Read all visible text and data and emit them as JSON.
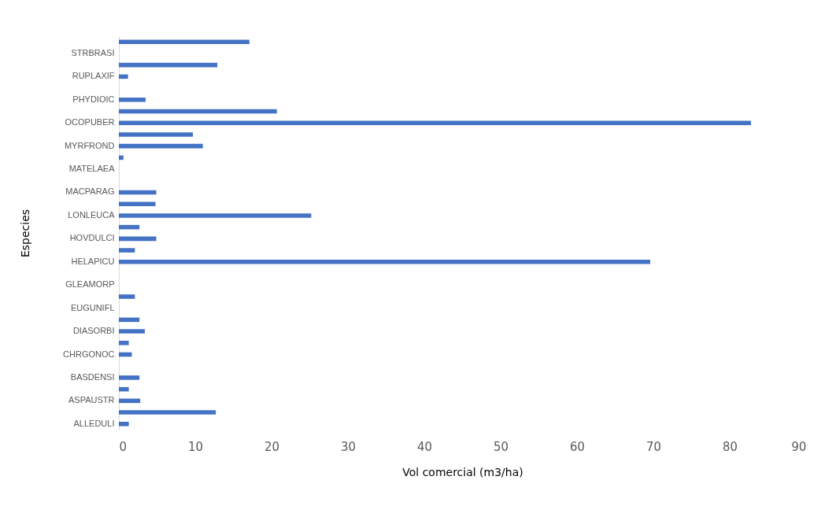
{
  "chart_data": {
    "type": "bar",
    "orientation": "horizontal",
    "xlabel": "Vol comercial (m3/ha)",
    "ylabel": "Especies",
    "categories": [
      null,
      "STRBRASI",
      null,
      "RUPLAXIF",
      null,
      "PHYDIOIC",
      null,
      "OCOPUBER",
      null,
      "MYRFROND",
      null,
      "MATELAEA",
      null,
      "MACPARAG",
      null,
      "LONLEUCA",
      null,
      "HOVDULCI",
      null,
      "HELAPICU",
      null,
      "GLEAMORP",
      null,
      "EUGUNIFL",
      null,
      "DIASORBI",
      null,
      "CHRGONOC",
      null,
      "BASDENSI",
      null,
      "ASPAUSTR",
      null,
      "ALLEDULI"
    ],
    "values": [
      17.1,
      0,
      12.9,
      1.2,
      0,
      3.5,
      20.7,
      82.8,
      9.7,
      11.0,
      0.6,
      0,
      0,
      4.9,
      4.8,
      25.2,
      2.7,
      4.9,
      2.1,
      69.6,
      0,
      0,
      2.1,
      0,
      2.7,
      3.4,
      1.3,
      1.7,
      0,
      2.7,
      1.3,
      2.8,
      12.7,
      1.3
    ],
    "color": "#4472c4",
    "xlim": [
      0,
      90
    ],
    "xticks": [
      0,
      10,
      20,
      30,
      40,
      50,
      60,
      70,
      80,
      90
    ],
    "grid": false
  }
}
